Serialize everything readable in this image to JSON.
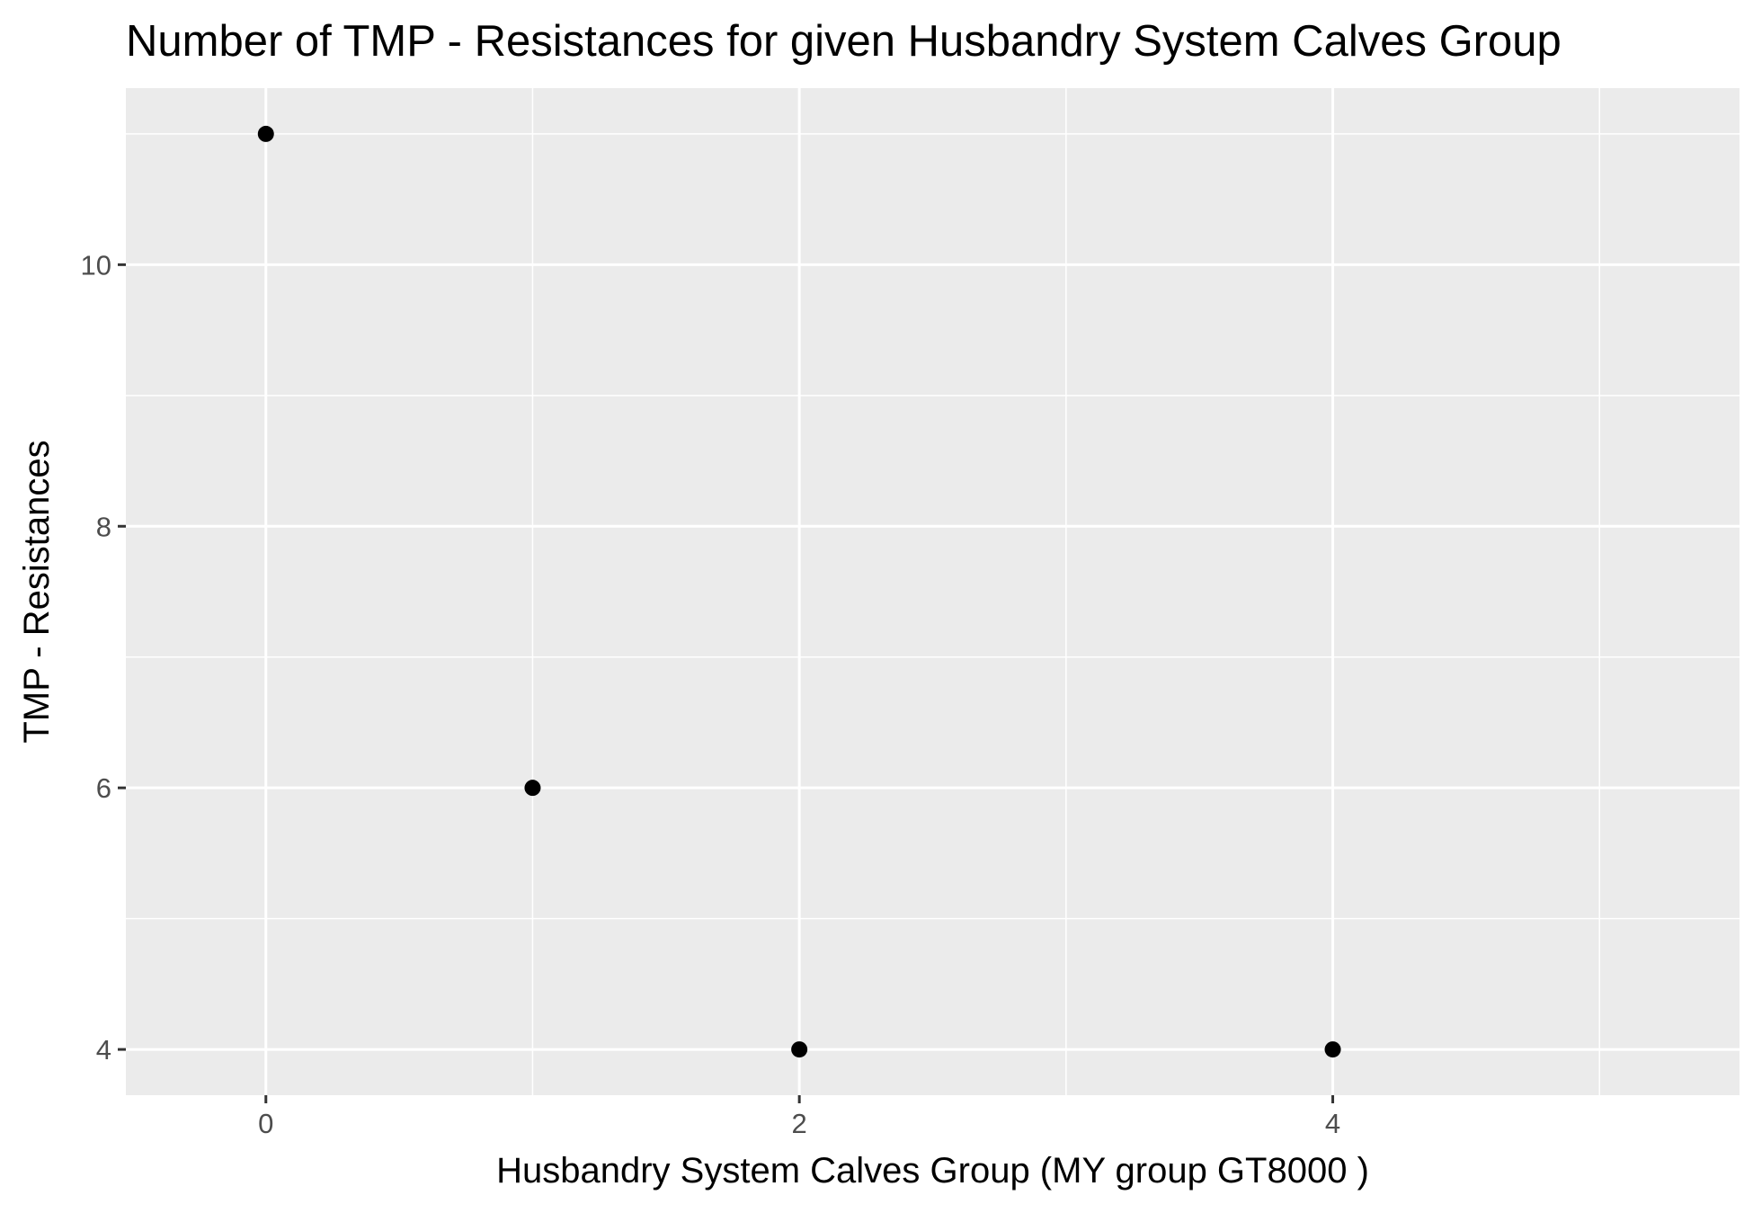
{
  "chart_data": {
    "type": "scatter",
    "title": "Number of TMP - Resistances for given Husbandry System Calves Group",
    "xlabel": "Husbandry System Calves Group     (MY group GT8000 )",
    "ylabel": "TMP - Resistances",
    "xlim": [
      -0.525,
      5.525
    ],
    "ylim": [
      3.65,
      11.35
    ],
    "x_ticks": [
      0,
      2,
      4
    ],
    "x_minor_ticks": [
      1,
      3,
      5
    ],
    "y_ticks": [
      4,
      6,
      8,
      10
    ],
    "y_minor_ticks": [
      5,
      7,
      9,
      11
    ],
    "grid": true,
    "series": [
      {
        "points": [
          {
            "x": 0,
            "y": 11
          },
          {
            "x": 1,
            "y": 6
          },
          {
            "x": 2,
            "y": 4
          },
          {
            "x": 4,
            "y": 4
          }
        ]
      }
    ],
    "colors": {
      "panel": "#ebebeb",
      "grid": "#ffffff",
      "point": "#000000",
      "tick_label": "#4d4d4d"
    }
  }
}
